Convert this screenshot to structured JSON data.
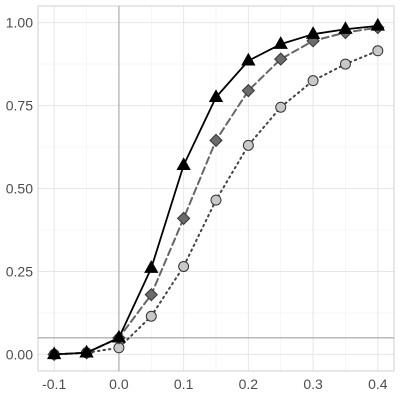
{
  "chart_data": {
    "type": "line",
    "title": "",
    "xlabel": "",
    "ylabel": "",
    "xlim": [
      -0.125,
      0.425
    ],
    "ylim": [
      -0.05,
      1.05
    ],
    "grid": true,
    "legend": "none",
    "x_ticks": [
      -0.1,
      0.0,
      0.1,
      0.2,
      0.3,
      0.4
    ],
    "x_tick_labels": [
      "-0.1",
      "0.0",
      "0.1",
      "0.2",
      "0.3",
      "0.4"
    ],
    "y_ticks": [
      0.0,
      0.25,
      0.5,
      0.75,
      1.0
    ],
    "y_tick_labels": [
      "0.00",
      "0.25",
      "0.50",
      "0.75",
      "1.00"
    ],
    "reference_lines": {
      "vertical_x": 0.0,
      "horizontal_y": 0.05
    },
    "x": [
      -0.1,
      -0.05,
      0.0,
      0.05,
      0.1,
      0.15,
      0.2,
      0.25,
      0.3,
      0.35,
      0.4
    ],
    "series": [
      {
        "marker": "triangle",
        "line_style": "solid",
        "line_color": "#000000",
        "marker_fill": "#000000",
        "values": [
          0.0,
          0.005,
          0.05,
          0.26,
          0.57,
          0.775,
          0.885,
          0.935,
          0.965,
          0.98,
          0.99
        ]
      },
      {
        "marker": "diamond",
        "line_style": "dashed",
        "line_color": "#666666",
        "marker_fill": "#6b6b6b",
        "values": [
          0.0,
          0.005,
          0.05,
          0.18,
          0.41,
          0.645,
          0.795,
          0.89,
          0.945,
          0.97,
          0.985
        ]
      },
      {
        "marker": "circle",
        "line_style": "dotted",
        "line_color": "#444444",
        "marker_fill": "#c8c8c8",
        "values": [
          0.0,
          0.005,
          0.02,
          0.115,
          0.265,
          0.465,
          0.63,
          0.745,
          0.825,
          0.875,
          0.915
        ]
      }
    ]
  }
}
